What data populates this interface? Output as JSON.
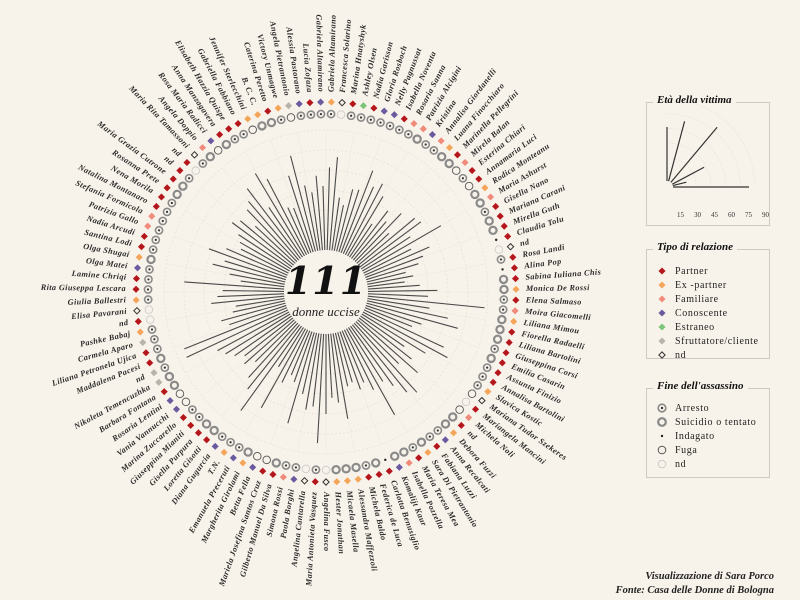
{
  "title": {
    "count": "111",
    "subtitle": "donne uccise"
  },
  "colors": {
    "background": "#f8f3ea",
    "bar": "#4a4a4a",
    "relation": {
      "partner": "#b5161b",
      "ex_partner": "#f4a55a",
      "familiare": "#f08a7a",
      "conoscente": "#6a5aa0",
      "estraneo": "#7cc47a",
      "sfruttatore": "#b8b3aa",
      "nd": "#333333"
    }
  },
  "legend_age": {
    "title": "Età della vittima",
    "ticks": [
      "15",
      "30",
      "45",
      "60",
      "75",
      "90"
    ]
  },
  "legend_relation": {
    "title": "Tipo di relazione",
    "items": [
      {
        "key": "partner",
        "label": "Partner"
      },
      {
        "key": "ex_partner",
        "label": "Ex -partner"
      },
      {
        "key": "familiare",
        "label": "Familiare"
      },
      {
        "key": "conoscente",
        "label": "Conoscente"
      },
      {
        "key": "estraneo",
        "label": "Estraneo"
      },
      {
        "key": "sfruttatore",
        "label": "Sfruttatore/cliente"
      },
      {
        "key": "nd",
        "label": "nd"
      }
    ]
  },
  "legend_outcome": {
    "title": "Fine dell'assassino",
    "items": [
      {
        "key": "arresto",
        "label": "Arresto"
      },
      {
        "key": "suicidio",
        "label": "Suicidio o tentato"
      },
      {
        "key": "indagato",
        "label": "Indagato"
      },
      {
        "key": "fuga",
        "label": "Fuga"
      },
      {
        "key": "nd",
        "label": "nd"
      }
    ]
  },
  "credits": {
    "author": "Visualizzazione di Sara Porco",
    "source": "Fonte: Casa delle Donne di Bologna"
  },
  "chart_data": {
    "type": "radial-bar",
    "title": "111 donne uccise",
    "value_label": "Età della vittima",
    "axis_range": [
      0,
      90
    ],
    "victims": [
      {
        "name": "Gabriela Altamirano",
        "age": 62,
        "relation": "ex_partner",
        "outcome": "arresto"
      },
      {
        "name": "Francesca Solarino",
        "age": 70,
        "relation": "nd",
        "outcome": "nd"
      },
      {
        "name": "Marina Hnatyshyk",
        "age": 40,
        "relation": "partner",
        "outcome": "arresto"
      },
      {
        "name": "Ashley Olsen",
        "age": 35,
        "relation": "estraneo",
        "outcome": "arresto"
      },
      {
        "name": "Nadia Garisson",
        "age": 48,
        "relation": "partner",
        "outcome": "arresto"
      },
      {
        "name": "Gloria Rosboch",
        "age": 49,
        "relation": "conoscente",
        "outcome": "arresto"
      },
      {
        "name": "Nelly Pagnussat",
        "age": 66,
        "relation": "conoscente",
        "outcome": "arresto"
      },
      {
        "name": "Isabella Noventa",
        "age": 55,
        "relation": "partner",
        "outcome": "arresto"
      },
      {
        "name": "Rosaria Sanna",
        "age": 60,
        "relation": "familiare",
        "outcome": "arresto"
      },
      {
        "name": "Patrizia Alcigini",
        "age": 52,
        "relation": "familiare",
        "outcome": "suicidio"
      },
      {
        "name": "Kristina",
        "age": 30,
        "relation": "conoscente",
        "outcome": "arresto"
      },
      {
        "name": "Annalisa Giordanelli",
        "age": 45,
        "relation": "familiare",
        "outcome": "arresto"
      },
      {
        "name": "Luana Finocchiaro",
        "age": 38,
        "relation": "ex_partner",
        "outcome": "suicidio"
      },
      {
        "name": "Marinella Pellegrini",
        "age": 50,
        "relation": "partner",
        "outcome": "suicidio"
      },
      {
        "name": "Mirela Balan",
        "age": 33,
        "relation": "familiare",
        "outcome": "fuga"
      },
      {
        "name": "Esterina Chiari",
        "age": 55,
        "relation": "partner",
        "outcome": "arresto"
      },
      {
        "name": "Annamaria Luci",
        "age": 57,
        "relation": "partner",
        "outcome": "fuga"
      },
      {
        "name": "Rodica Monteanu",
        "age": 44,
        "relation": "ex_partner",
        "outcome": "suicidio"
      },
      {
        "name": "Maria Ashurst",
        "age": 68,
        "relation": "familiare",
        "outcome": "suicidio"
      },
      {
        "name": "Gisella Nano",
        "age": 40,
        "relation": "partner",
        "outcome": "arresto"
      },
      {
        "name": "Mariana Carani",
        "age": 53,
        "relation": "partner",
        "outcome": "suicidio"
      },
      {
        "name": "Mirella Guth",
        "age": 46,
        "relation": "partner",
        "outcome": "suicidio"
      },
      {
        "name": "Claudia Tolu",
        "age": 41,
        "relation": "partner",
        "outcome": "indagato"
      },
      {
        "name": "nd",
        "age": 30,
        "relation": "nd",
        "outcome": "nd"
      },
      {
        "name": "Rosa Landi",
        "age": 35,
        "relation": "partner",
        "outcome": "arresto"
      },
      {
        "name": "Alina Pop",
        "age": 28,
        "relation": "partner",
        "outcome": "indagato"
      },
      {
        "name": "Sabina Iuliana Chis",
        "age": 39,
        "relation": "partner",
        "outcome": "suicidio"
      },
      {
        "name": "Monica De Rossi",
        "age": 52,
        "relation": "ex_partner",
        "outcome": "suicidio"
      },
      {
        "name": "Elena Salmaso",
        "age": 45,
        "relation": "partner",
        "outcome": "arresto"
      },
      {
        "name": "Moira Giacomelli",
        "age": 88,
        "relation": "familiare",
        "outcome": "arresto"
      },
      {
        "name": "Liliana Mimou",
        "age": 47,
        "relation": "ex_partner",
        "outcome": "suicidio"
      },
      {
        "name": "Fiorella Radaelli",
        "age": 62,
        "relation": "partner",
        "outcome": "suicidio"
      },
      {
        "name": "Liliana Bartolini",
        "age": 71,
        "relation": "partner",
        "outcome": "suicidio"
      },
      {
        "name": "Giuseppina Corsi",
        "age": 44,
        "relation": "partner",
        "outcome": "arresto"
      },
      {
        "name": "Emilia Casarin",
        "age": 38,
        "relation": "partner",
        "outcome": "suicidio"
      },
      {
        "name": "Assunta Finizio",
        "age": 66,
        "relation": "partner",
        "outcome": "arresto"
      },
      {
        "name": "Annalisa Bartolini",
        "age": 72,
        "relation": "partner",
        "outcome": "arresto"
      },
      {
        "name": "Slavica Kostic",
        "age": 56,
        "relation": "ex_partner",
        "outcome": "arresto"
      },
      {
        "name": "Mariana Tudor Szekeres",
        "age": 40,
        "relation": "nd",
        "outcome": "fuga"
      },
      {
        "name": "Mariangela Mancini",
        "age": 50,
        "relation": "partner",
        "outcome": "nd"
      },
      {
        "name": "Michela Noli",
        "age": 60,
        "relation": "familiare",
        "outcome": "fuga"
      },
      {
        "name": "nd",
        "age": 45,
        "relation": "partner",
        "outcome": "suicidio"
      },
      {
        "name": "Debora Fuzzi",
        "age": 70,
        "relation": "ex_partner",
        "outcome": "suicidio"
      },
      {
        "name": "Anna Recalcati",
        "age": 65,
        "relation": "conoscente",
        "outcome": "arresto"
      },
      {
        "name": "Fabiana Luzzi",
        "age": 55,
        "relation": "partner",
        "outcome": "arresto"
      },
      {
        "name": "Sara Di Pietrantonio",
        "age": 48,
        "relation": "ex_partner",
        "outcome": "suicidio"
      },
      {
        "name": "Maria Teresa Mea",
        "age": 74,
        "relation": "partner",
        "outcome": "arresto"
      },
      {
        "name": "Isabella Pozzella",
        "age": 50,
        "relation": "familiare",
        "outcome": "suicidio"
      },
      {
        "name": "Komalijt Kaur",
        "age": 42,
        "relation": "conoscente",
        "outcome": "suicidio"
      },
      {
        "name": "Carlotta Benusiglio",
        "age": 46,
        "relation": "partner",
        "outcome": "indagato"
      },
      {
        "name": "Federica de Luca",
        "age": 39,
        "relation": "partner",
        "outcome": "suicidio"
      },
      {
        "name": "Michela Baldo",
        "age": 41,
        "relation": "partner",
        "outcome": "arresto"
      },
      {
        "name": "Alessandra Maffezzoli",
        "age": 65,
        "relation": "ex_partner",
        "outcome": "suicidio"
      },
      {
        "name": "Micaela Masella",
        "age": 52,
        "relation": "ex_partner",
        "outcome": "suicidio"
      },
      {
        "name": "Hester Jonathan",
        "age": 48,
        "relation": "ex_partner",
        "outcome": "suicidio"
      },
      {
        "name": "Angelina Fusco",
        "age": 60,
        "relation": "nd",
        "outcome": "nd"
      },
      {
        "name": "Maria Antonieta Vasquez",
        "age": 82,
        "relation": "partner",
        "outcome": "arresto"
      },
      {
        "name": "Angelina Cantarella",
        "age": 55,
        "relation": "nd",
        "outcome": "nd"
      },
      {
        "name": "Paola Borghi",
        "age": 58,
        "relation": "conoscente",
        "outcome": "arresto"
      },
      {
        "name": "Simona Rossi",
        "age": 47,
        "relation": "familiare",
        "outcome": "arresto"
      },
      {
        "name": "Gilberto Manuel Da Silva",
        "age": 71,
        "relation": "partner",
        "outcome": "suicidio"
      },
      {
        "name": "Mariela Josefina Santos Cruz",
        "age": 40,
        "relation": "partner",
        "outcome": "fuga"
      },
      {
        "name": "Betta Fella",
        "age": 36,
        "relation": "conoscente",
        "outcome": "fuga"
      },
      {
        "name": "Margherita Girolami",
        "age": 44,
        "relation": "ex_partner",
        "outcome": "suicidio"
      },
      {
        "name": "Emanuela Preceruti",
        "age": 68,
        "relation": "conoscente",
        "outcome": "arresto"
      },
      {
        "name": "T.N.",
        "age": 35,
        "relation": "ex_partner",
        "outcome": "arresto"
      },
      {
        "name": "Diana Gugurcia",
        "age": 78,
        "relation": "conoscente",
        "outcome": "arresto"
      },
      {
        "name": "Loretta Gisotti",
        "age": 62,
        "relation": "partner",
        "outcome": "suicidio"
      },
      {
        "name": "Gisella Purpura",
        "age": 55,
        "relation": "partner",
        "outcome": "suicidio"
      },
      {
        "name": "Giuseppina Mianiti",
        "age": 43,
        "relation": "partner",
        "outcome": "arresto"
      },
      {
        "name": "Marina Zuccarello",
        "age": 50,
        "relation": "partner",
        "outcome": "arresto"
      },
      {
        "name": "Vania Vannucchi",
        "age": 46,
        "relation": "conoscente",
        "outcome": "fuga"
      },
      {
        "name": "Rosaria Lentini",
        "age": 52,
        "relation": "conoscente",
        "outcome": "fuga"
      },
      {
        "name": "Barbara Fontana",
        "age": 57,
        "relation": "partner",
        "outcome": "suicidio"
      },
      {
        "name": "Nikoleta Temencuzhka",
        "age": 61,
        "relation": "sfruttatore",
        "outcome": "suicidio"
      },
      {
        "name": "nd",
        "age": 84,
        "relation": "sfruttatore",
        "outcome": "arresto"
      },
      {
        "name": "Maddalena Pacesi",
        "age": 83,
        "relation": "partner",
        "outcome": "suicidio"
      },
      {
        "name": "Liliana Petronela Ujica",
        "age": 45,
        "relation": "partner",
        "outcome": "arresto"
      },
      {
        "name": "Carmela Aparo",
        "age": 50,
        "relation": "sfruttatore",
        "outcome": "arresto"
      },
      {
        "name": "Pashke Babaj",
        "age": 40,
        "relation": "ex_partner",
        "outcome": "arresto"
      },
      {
        "name": "nd",
        "age": 37,
        "relation": "partner",
        "outcome": "nd"
      },
      {
        "name": "Elisa Pavarani",
        "age": 55,
        "relation": "nd",
        "outcome": "nd"
      },
      {
        "name": "Giulia Ballestri",
        "age": 50,
        "relation": "ex_partner",
        "outcome": "arresto"
      },
      {
        "name": "Rita Giuseppa Lescara",
        "age": 46,
        "relation": "partner",
        "outcome": "arresto"
      },
      {
        "name": "Lamine Chriqi",
        "age": 75,
        "relation": "partner",
        "outcome": "arresto"
      },
      {
        "name": "Olga Matei",
        "age": 33,
        "relation": "conoscente",
        "outcome": "arresto"
      },
      {
        "name": "Olga Shugai",
        "age": 42,
        "relation": "ex_partner",
        "outcome": "suicidio"
      },
      {
        "name": "Santina Lodi",
        "age": 56,
        "relation": "partner",
        "outcome": "arresto"
      },
      {
        "name": "Nadia Arcudi",
        "age": 48,
        "relation": "partner",
        "outcome": "arresto"
      },
      {
        "name": "Patrizia Gallo",
        "age": 62,
        "relation": "familiare",
        "outcome": "arresto"
      },
      {
        "name": "Stefania Formicola",
        "age": 50,
        "relation": "familiare",
        "outcome": "arresto"
      },
      {
        "name": "Natalina Montanaro",
        "age": 40,
        "relation": "partner",
        "outcome": "arresto"
      },
      {
        "name": "Nena Morila",
        "age": 43,
        "relation": "partner",
        "outcome": "arresto"
      },
      {
        "name": "Rosanna Prete",
        "age": 47,
        "relation": "partner",
        "outcome": "suicidio"
      },
      {
        "name": "Maria Grazia Cutrone",
        "age": 56,
        "relation": "partner",
        "outcome": "suicidio"
      },
      {
        "name": "nd",
        "age": 52,
        "relation": "partner",
        "outcome": "arresto"
      },
      {
        "name": "nd",
        "age": 41,
        "relation": "partner",
        "outcome": "nd"
      },
      {
        "name": "Maria Rita Tamassoni",
        "age": 54,
        "relation": "nd",
        "outcome": "arresto"
      },
      {
        "name": "Angela Doppio",
        "age": 58,
        "relation": "familiare",
        "outcome": "suicidio"
      },
      {
        "name": "Rosa Maria Radicci",
        "age": 66,
        "relation": "conoscente",
        "outcome": "fuga"
      },
      {
        "name": "Anna Manzagavera",
        "age": 45,
        "relation": "partner",
        "outcome": "suicidio"
      },
      {
        "name": "Elisabeth Hazzia Quispe",
        "age": 72,
        "relation": "partner",
        "outcome": "arresto"
      },
      {
        "name": "Gabriella Fabbiano",
        "age": 64,
        "relation": "partner",
        "outcome": "arresto"
      },
      {
        "name": "Jennifer Sterlecchini",
        "age": 38,
        "relation": "ex_partner",
        "outcome": "fuga"
      },
      {
        "name": "B. C. C.",
        "age": 36,
        "relation": "ex_partner",
        "outcome": "suicidio"
      },
      {
        "name": "Caterina Peretto",
        "age": 60,
        "relation": "partner",
        "outcome": "suicidio"
      },
      {
        "name": "Victory Unmagwe",
        "age": 74,
        "relation": "ex_partner",
        "outcome": "arresto"
      },
      {
        "name": "Angela Pietrantonio",
        "age": 50,
        "relation": "sfruttatore",
        "outcome": "fuga"
      },
      {
        "name": "Alessia Pastorano",
        "age": 44,
        "relation": "conoscente",
        "outcome": "arresto"
      },
      {
        "name": "Lucia Zofaza",
        "age": 56,
        "relation": "partner",
        "outcome": "arresto"
      },
      {
        "name": "Gabriela Altamirano Sr",
        "age": 48,
        "relation": "conoscente",
        "outcome": "arresto"
      }
    ]
  }
}
